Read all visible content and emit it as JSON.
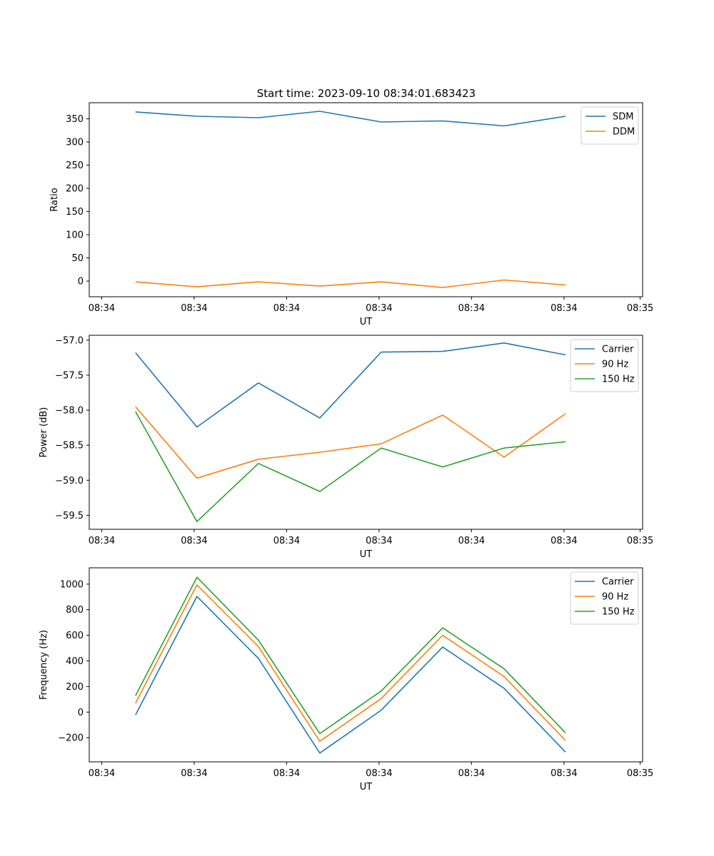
{
  "figure": {
    "title": "Start time: 2023-09-10 08:34:01.683423"
  },
  "colors": {
    "blue": "#1f77b4",
    "orange": "#ff7f0e",
    "green": "#2ca02c"
  },
  "chart_data": [
    {
      "type": "line",
      "title": "Start time: 2023-09-10 08:34:01.683423",
      "xlabel": "UT",
      "ylabel": "Ratio",
      "x": [
        1,
        2,
        3,
        4,
        5,
        6,
        7,
        8
      ],
      "xlim": [
        0.247,
        9.255
      ],
      "x_ticks": [
        0.45,
        1.955,
        3.46,
        4.965,
        6.47,
        7.975,
        9.215
      ],
      "x_tick_labels": [
        "08:34",
        "08:34",
        "08:34",
        "08:34",
        "08:34",
        "08:34",
        "08:35"
      ],
      "ylim": [
        -33.8,
        384.7
      ],
      "y_ticks": [
        0,
        50,
        100,
        150,
        200,
        250,
        300,
        350
      ],
      "y_tick_labels": [
        "0",
        "50",
        "100",
        "150",
        "200",
        "250",
        "300",
        "350"
      ],
      "legend": "top-right",
      "series": [
        {
          "name": "SDM",
          "color": "#1f77b4",
          "values": [
            364.8,
            355.5,
            352.4,
            366.3,
            343.2,
            345.5,
            334.7,
            355.5
          ]
        },
        {
          "name": "DDM",
          "color": "#ff7f0e",
          "values": [
            -1.6,
            -12.4,
            -1.6,
            -10.9,
            -1.6,
            -14.0,
            2.3,
            -8.5
          ]
        }
      ]
    },
    {
      "type": "line",
      "title": "",
      "xlabel": "UT",
      "ylabel": "Power (dB)",
      "x": [
        1,
        2,
        3,
        4,
        5,
        6,
        7,
        8
      ],
      "xlim": [
        0.247,
        9.255
      ],
      "x_ticks": [
        0.45,
        1.955,
        3.46,
        4.965,
        6.47,
        7.975,
        9.215
      ],
      "x_tick_labels": [
        "08:34",
        "08:34",
        "08:34",
        "08:34",
        "08:34",
        "08:34",
        "08:35"
      ],
      "ylim": [
        -59.7,
        -56.93
      ],
      "y_ticks": [
        -59.5,
        -59.0,
        -58.5,
        -58.0,
        -57.5,
        -57.0
      ],
      "y_tick_labels": [
        "−59.5",
        "−59.0",
        "−58.5",
        "−58.0",
        "−57.5",
        "−57.0"
      ],
      "legend": "top-right",
      "series": [
        {
          "name": "Carrier",
          "color": "#1f77b4",
          "values": [
            -57.18,
            -58.24,
            -57.61,
            -58.11,
            -57.17,
            -57.16,
            -57.04,
            -57.21
          ]
        },
        {
          "name": "90 Hz",
          "color": "#ff7f0e",
          "values": [
            -57.95,
            -58.97,
            -58.7,
            -58.6,
            -58.48,
            -58.07,
            -58.67,
            -58.05
          ]
        },
        {
          "name": "150 Hz",
          "color": "#2ca02c",
          "values": [
            -58.02,
            -59.59,
            -58.76,
            -59.16,
            -58.54,
            -58.81,
            -58.54,
            -58.45
          ]
        }
      ]
    },
    {
      "type": "line",
      "title": "",
      "xlabel": "UT",
      "ylabel": "Frequency (Hz)",
      "x": [
        1,
        2,
        3,
        4,
        5,
        6,
        7,
        8
      ],
      "xlim": [
        0.247,
        9.255
      ],
      "x_ticks": [
        0.45,
        1.955,
        3.46,
        4.965,
        6.47,
        7.975,
        9.215
      ],
      "x_tick_labels": [
        "08:34",
        "08:34",
        "08:34",
        "08:34",
        "08:34",
        "08:34",
        "08:35"
      ],
      "ylim": [
        -388.6,
        1127.3
      ],
      "y_ticks": [
        -200,
        0,
        200,
        400,
        600,
        800,
        1000
      ],
      "y_tick_labels": [
        "−200",
        "0",
        "200",
        "400",
        "600",
        "800",
        "1000"
      ],
      "legend": "top-right",
      "series": [
        {
          "name": "Carrier",
          "color": "#1f77b4",
          "values": [
            -22,
            904,
            420,
            -320,
            15,
            508,
            186,
            -312
          ]
        },
        {
          "name": "90 Hz",
          "color": "#ff7f0e",
          "values": [
            70,
            994,
            512,
            -228,
            106,
            600,
            278,
            -222
          ]
        },
        {
          "name": "150 Hz",
          "color": "#2ca02c",
          "values": [
            128,
            1054,
            562,
            -168,
            165,
            658,
            338,
            -162
          ]
        }
      ]
    }
  ]
}
